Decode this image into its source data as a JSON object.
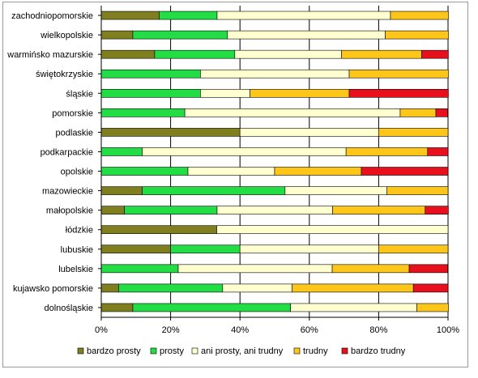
{
  "chart_data": {
    "type": "bar",
    "orientation": "horizontal",
    "stacked": "percent",
    "title": "",
    "xlabel": "",
    "ylabel": "",
    "xlim": [
      0,
      100
    ],
    "x_ticks": [
      "0%",
      "20%",
      "40%",
      "60%",
      "80%",
      "100%"
    ],
    "grid": true,
    "legend_position": "bottom",
    "categories": [
      "zachodniopomorskie",
      "wielkopolskie",
      "warmińsko mazurskie",
      "świętokrzyskie",
      "śląskie",
      "pomorskie",
      "podlaskie",
      "podkarpackie",
      "opolskie",
      "mazowieckie",
      "małopolskie",
      "łódzkie",
      "lubuskie",
      "lubelskie",
      "kujawsko pomorskie",
      "dolnośląskie"
    ],
    "series": [
      {
        "name": "bardzo prosty",
        "color": "#7f7f1f",
        "values": [
          16.7,
          9.1,
          15.4,
          0,
          0,
          0,
          40.0,
          0,
          0,
          11.8,
          6.7,
          33.3,
          20.0,
          0,
          5.0,
          9.1
        ]
      },
      {
        "name": "prosty",
        "color": "#22dd44",
        "values": [
          16.7,
          27.3,
          23.1,
          28.6,
          28.6,
          24.1,
          0,
          11.8,
          25.0,
          41.2,
          26.7,
          0,
          20.0,
          22.2,
          30.0,
          45.5
        ]
      },
      {
        "name": "ani prosty, ani trudny",
        "color": "#ffffd0",
        "values": [
          50.0,
          45.5,
          30.8,
          42.9,
          14.3,
          62.1,
          40.0,
          58.8,
          25.0,
          29.4,
          33.3,
          66.7,
          40.0,
          44.4,
          20.0,
          36.4
        ]
      },
      {
        "name": "trudny",
        "color": "#ffc61a",
        "values": [
          16.7,
          18.2,
          23.1,
          28.6,
          28.6,
          10.3,
          20.0,
          23.5,
          25.0,
          17.6,
          26.7,
          0,
          20.0,
          22.2,
          35.0,
          9.1
        ]
      },
      {
        "name": "bardzo trudny",
        "color": "#e8101c",
        "values": [
          0,
          0,
          7.7,
          0,
          28.6,
          3.4,
          0,
          5.9,
          25.0,
          0,
          6.7,
          0,
          0,
          11.1,
          10.0,
          0
        ]
      }
    ]
  }
}
